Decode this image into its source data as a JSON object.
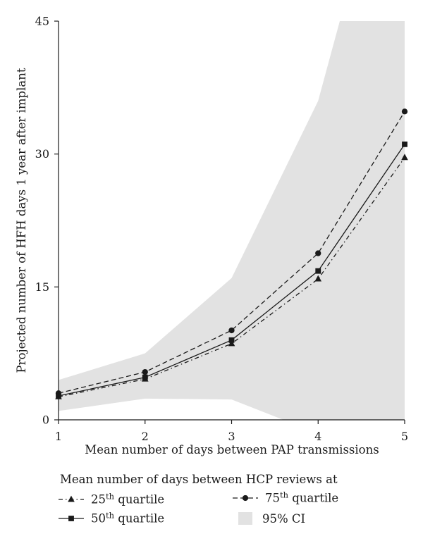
{
  "chart_data": {
    "type": "line",
    "xlabel": "Mean number of days between PAP transmissions",
    "ylabel": "Projected number of HFH days 1 year after implant",
    "x": [
      1,
      2,
      3,
      4,
      5
    ],
    "xlim": [
      1,
      5
    ],
    "ylim": [
      0,
      45
    ],
    "x_ticks": [
      1,
      2,
      3,
      4,
      5
    ],
    "y_ticks": [
      0,
      15,
      30,
      45
    ],
    "grid": false,
    "legend_title": "Mean number of days between HCP reviews at",
    "legend_position": "bottom",
    "series": [
      {
        "name": "25th quartile",
        "base": "25",
        "sup": "th",
        "suffix": " quartile",
        "values": [
          2.6,
          4.6,
          8.6,
          15.9,
          29.6
        ],
        "dash": "6,4,1.5,4",
        "marker": "triangle",
        "color": "#1a1a1a"
      },
      {
        "name": "50th quartile",
        "base": "50",
        "sup": "th",
        "suffix": " quartile",
        "values": [
          2.7,
          4.8,
          9.0,
          16.8,
          31.1
        ],
        "dash": "",
        "marker": "square",
        "color": "#1a1a1a"
      },
      {
        "name": "75th quartile",
        "base": "75",
        "sup": "th",
        "suffix": " quartile",
        "values": [
          3.0,
          5.4,
          10.1,
          18.8,
          34.8
        ],
        "dash": "7,4",
        "marker": "circle",
        "color": "#1a1a1a"
      }
    ],
    "ci_band": {
      "name": "95% CI",
      "color": "#e2e2e2",
      "upper": [
        [
          1,
          4.5
        ],
        [
          2,
          7.5
        ],
        [
          3,
          16.0
        ],
        [
          4,
          36.0
        ],
        [
          4.25,
          45
        ],
        [
          5,
          45
        ]
      ],
      "lower": [
        [
          1,
          1.0
        ],
        [
          2,
          2.4
        ],
        [
          3,
          2.3
        ],
        [
          3.6,
          0
        ],
        [
          5,
          0
        ]
      ]
    }
  }
}
